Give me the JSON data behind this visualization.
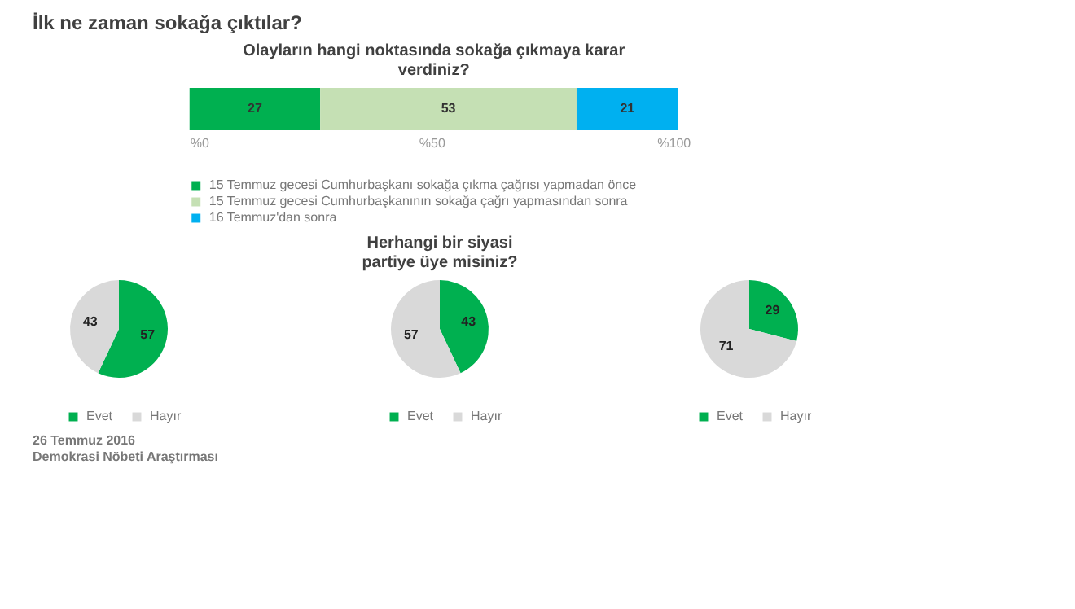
{
  "chart_data": [
    {
      "type": "bar",
      "orientation": "horizontal",
      "stacked": true,
      "title": "Olayların hangi noktasında sokağa çıkmaya karar verdiniz?",
      "categories": [
        null
      ],
      "series": [
        {
          "name": "15 Temmuz gecesi Cumhurbaşkanı sokağa çıkma çağrısı yapmadan önce",
          "color": "#00b050",
          "values": [
            27
          ]
        },
        {
          "name": "15 Temmuz gecesi Cumhurbaşkanının sokağa çağrı yapmasından sonra",
          "color": "#c5e0b4",
          "values": [
            53
          ]
        },
        {
          "name": "16 Temmuz'dan sonra",
          "color": "#00b0f0",
          "values": [
            21
          ]
        }
      ],
      "xlim": [
        0,
        101
      ],
      "xticks": [
        {
          "value": 0,
          "label": "%0"
        },
        {
          "value": 50,
          "label": "%50"
        },
        {
          "value": 100,
          "label": "%100"
        }
      ],
      "data_labels": true,
      "legend": "bottom",
      "grid": false,
      "annotations": [
        "İlk ne zaman sokağa çıktılar?",
        "26 Temmuz 2016",
        "Demokrasi Nöbeti Araştırması"
      ]
    },
    {
      "type": "pie",
      "categories": [
        "Evet",
        "Hayır"
      ],
      "values": [
        57,
        43
      ],
      "colors": [
        "#00b050",
        "#d9d9d9"
      ],
      "data_labels": true,
      "legend": "bottom"
    },
    {
      "type": "pie",
      "title": "Herhangi bir siyasi partiye üye misiniz?",
      "categories": [
        "Evet",
        "Hayır"
      ],
      "values": [
        43,
        57
      ],
      "colors": [
        "#00b050",
        "#d9d9d9"
      ],
      "data_labels": true,
      "legend": "bottom"
    },
    {
      "type": "pie",
      "categories": [
        "Evet",
        "Hayır"
      ],
      "values": [
        29,
        71
      ],
      "colors": [
        "#00b050",
        "#d9d9d9"
      ],
      "data_labels": true,
      "legend": "bottom"
    }
  ]
}
